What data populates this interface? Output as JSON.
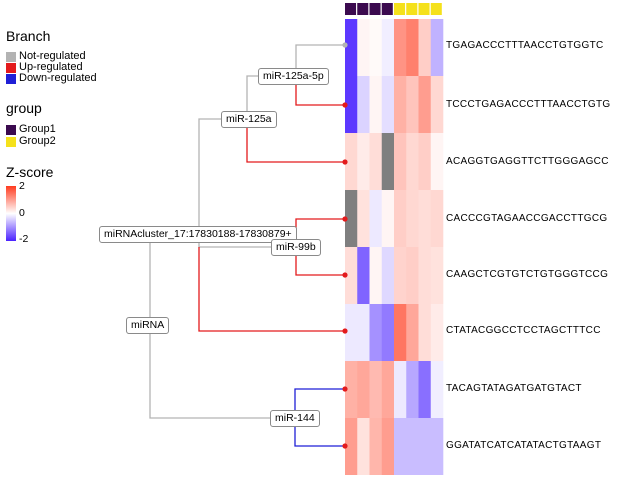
{
  "legend": {
    "branch": {
      "title": "Branch",
      "items": [
        {
          "label": "Not-regulated",
          "color": "#b3b3b3"
        },
        {
          "label": "Up-regulated",
          "color": "#e31a1c"
        },
        {
          "label": "Down-regulated",
          "color": "#1f1fd6"
        }
      ]
    },
    "group": {
      "title": "group",
      "items": [
        {
          "label": "Group1",
          "color": "#3b0a4f"
        },
        {
          "label": "Group2",
          "color": "#f5e11b"
        }
      ]
    },
    "zscore": {
      "title": "Z-score",
      "max_label": "2",
      "mid_label": "0",
      "min_label": "-2",
      "colors": [
        "#ff3b1f",
        "#ffffff",
        "#4a22ff"
      ]
    }
  },
  "tree": {
    "nodes": {
      "root": "miRNA",
      "cluster": "miRNAcluster_17:17830188-17830879+",
      "mir125a": "miR-125a",
      "mir125a5p": "miR-125a-5p",
      "mir99b": "miR-99b",
      "mir144": "miR-144"
    },
    "branch_colors": {
      "not": "#b3b3b3",
      "up": "#e31a1c",
      "down": "#1f1fd6"
    }
  },
  "heatmap": {
    "column_groups": [
      "Group1",
      "Group1",
      "Group1",
      "Group1",
      "Group2",
      "Group2",
      "Group2",
      "Group2"
    ],
    "na_color": "#7f7f7f",
    "rows": [
      {
        "sequence": "TGAGACCCTTTAACCTGTGGTC",
        "values": [
          -1.8,
          0.1,
          0.05,
          -0.15,
          1.1,
          1.3,
          0.5,
          -0.7
        ]
      },
      {
        "sequence": "TCCCTGAGACCCTTTAACCTGTG",
        "values": [
          -1.8,
          -0.4,
          0.1,
          -0.3,
          0.8,
          0.6,
          1.0,
          0.4
        ]
      },
      {
        "sequence": "ACAGGTGAGGTTCTTGGGAGCC",
        "values": [
          0.4,
          0.2,
          0.35,
          null,
          0.6,
          0.4,
          0.5,
          0.1
        ]
      },
      {
        "sequence": "CACCCGTAGAACCGACCTTGCG",
        "values": [
          null,
          0.3,
          -0.2,
          0.1,
          0.5,
          0.4,
          0.35,
          0.4
        ]
      },
      {
        "sequence": "CAAGCTCGTGTCTGTGGGTCCG",
        "values": [
          0.35,
          -1.4,
          0.1,
          -0.35,
          0.45,
          0.5,
          0.35,
          0.3
        ]
      },
      {
        "sequence": "CTATACGGCCTCCTAGCTTTCC",
        "values": [
          -0.2,
          -0.2,
          -1.0,
          -1.2,
          1.4,
          0.9,
          0.35,
          0.2
        ]
      },
      {
        "sequence": "TACAGTATAGATGATGTACT",
        "values": [
          0.8,
          0.9,
          0.7,
          0.9,
          -0.2,
          -0.8,
          -1.3,
          -0.15
        ]
      },
      {
        "sequence": "GGATATCATCATATACTGTAAGT",
        "values": [
          1.0,
          0.3,
          0.75,
          1.0,
          -0.6,
          -0.6,
          -0.6,
          -0.6
        ]
      }
    ]
  }
}
